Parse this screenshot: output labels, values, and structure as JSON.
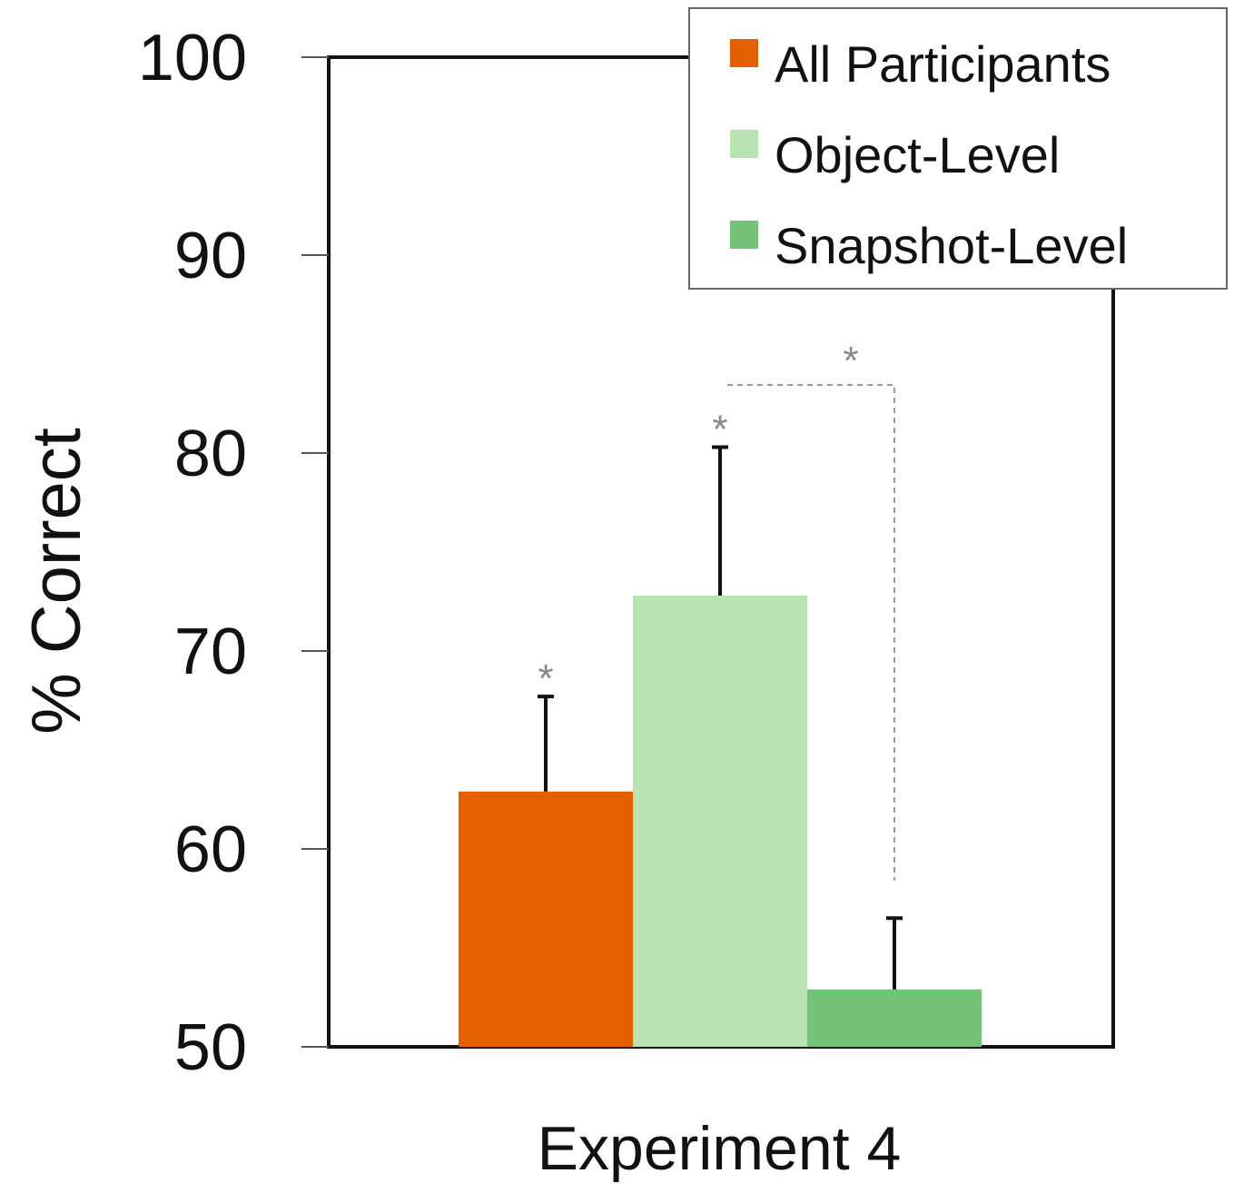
{
  "chart_data": {
    "type": "bar",
    "categories": [
      "Experiment 4"
    ],
    "series": [
      {
        "name": "All Participants",
        "values": [
          62.9
        ],
        "error": [
          4.8
        ],
        "color": "#e35f00"
      },
      {
        "name": "Object-Level",
        "values": [
          72.8
        ],
        "error": [
          7.5
        ],
        "color": "#b8e2b2"
      },
      {
        "name": "Snapshot-Level",
        "values": [
          52.9
        ],
        "error": [
          3.6
        ],
        "color": "#72c277"
      }
    ],
    "xlabel": "Experiment 4",
    "ylabel": "% Correct",
    "ylim": [
      50,
      100
    ],
    "yticks": [
      50,
      60,
      70,
      80,
      90,
      100
    ],
    "ytick_labels": [
      "50",
      "60",
      "70",
      "80",
      "90",
      "100"
    ],
    "grid": false,
    "legend_position": "top-right",
    "significance": {
      "bar_marker": "*",
      "starred_series": [
        "All Participants",
        "Object-Level"
      ],
      "comparison": {
        "between": [
          "Object-Level",
          "Snapshot-Level"
        ],
        "marker": "*"
      }
    }
  }
}
